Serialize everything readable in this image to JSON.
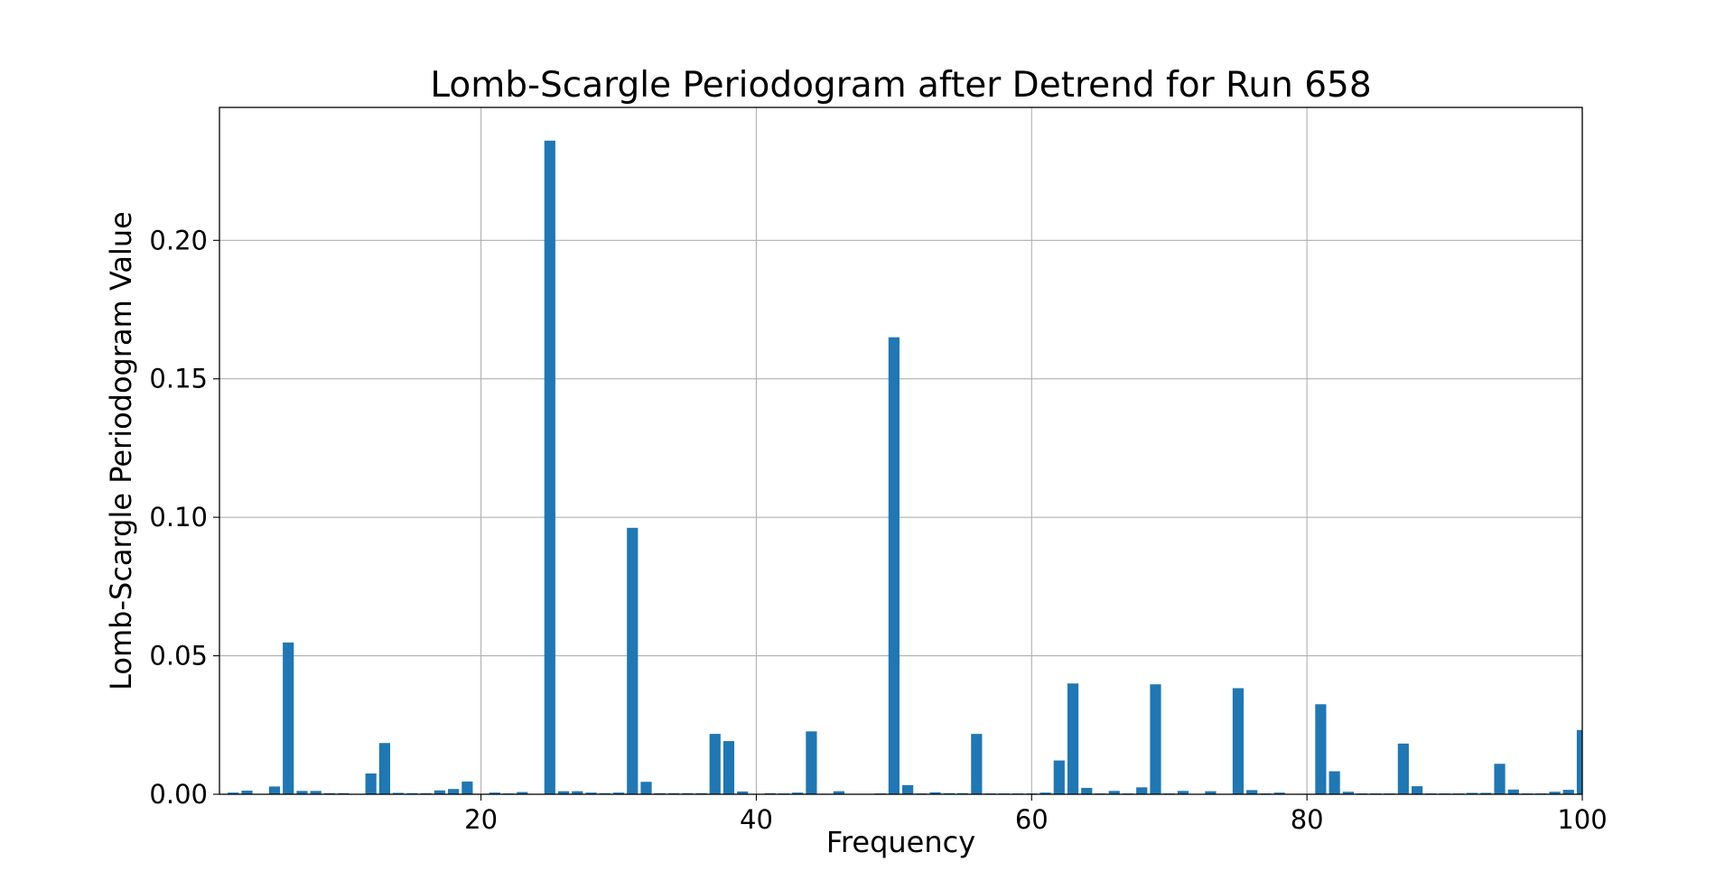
{
  "chart_data": {
    "type": "bar",
    "title": "Lomb-Scargle Periodogram after Detrend for Run 658",
    "xlabel": "Frequency",
    "ylabel": "Lomb-Scargle Periodogram Value",
    "xlim": [
      1,
      100
    ],
    "ylim": [
      0,
      0.248
    ],
    "xticks": [
      20,
      40,
      60,
      80,
      100
    ],
    "xtick_labels": [
      "20",
      "40",
      "60",
      "80",
      "100"
    ],
    "yticks": [
      0,
      0.05,
      0.1,
      0.15,
      0.2
    ],
    "ytick_labels": [
      "0.00",
      "0.05",
      "0.10",
      "0.15",
      "0.20"
    ],
    "grid": true,
    "bar_color": "#1f77b4",
    "x": [
      2,
      3,
      4,
      5,
      6,
      7,
      8,
      9,
      10,
      11,
      12,
      13,
      14,
      15,
      16,
      17,
      18,
      19,
      20,
      21,
      22,
      23,
      24,
      25,
      26,
      27,
      28,
      29,
      30,
      31,
      32,
      33,
      34,
      35,
      36,
      37,
      38,
      39,
      40,
      41,
      42,
      43,
      44,
      45,
      46,
      47,
      48,
      49,
      50,
      51,
      52,
      53,
      54,
      55,
      56,
      57,
      58,
      59,
      60,
      61,
      62,
      63,
      64,
      65,
      66,
      67,
      68,
      69,
      70,
      71,
      72,
      73,
      74,
      75,
      76,
      77,
      78,
      79,
      80,
      81,
      82,
      83,
      84,
      85,
      86,
      87,
      88,
      89,
      90,
      91,
      92,
      93,
      94,
      95,
      96,
      97,
      98,
      99,
      100
    ],
    "values": [
      0.0006,
      0.0013,
      0.0001,
      0.0028,
      0.0548,
      0.0012,
      0.0012,
      0.0004,
      0.0004,
      0.0001,
      0.0075,
      0.0185,
      0.0005,
      0.0004,
      0.0004,
      0.0014,
      0.0019,
      0.0046,
      0.0001,
      0.0006,
      0.0003,
      0.0008,
      0.0001,
      0.236,
      0.0011,
      0.0011,
      0.0006,
      0.0004,
      0.0006,
      0.0962,
      0.0045,
      0.0004,
      0.0004,
      0.0004,
      0.0004,
      0.0218,
      0.0192,
      0.001,
      0.0001,
      0.0004,
      0.0003,
      0.0006,
      0.0227,
      0.0002,
      0.0011,
      0.0001,
      0.0001,
      0.0003,
      0.165,
      0.0033,
      0.0003,
      0.0007,
      0.0004,
      0.0004,
      0.0218,
      0.0003,
      0.0003,
      0.0003,
      0.0003,
      0.0006,
      0.0122,
      0.04,
      0.0023,
      0.0003,
      0.0012,
      0.0003,
      0.0025,
      0.0397,
      0.0003,
      0.0012,
      0.0001,
      0.0011,
      0.0001,
      0.0383,
      0.0015,
      0.0003,
      0.0006,
      0.0001,
      0.0001,
      0.0325,
      0.0083,
      0.0009,
      0.0003,
      0.0003,
      0.0003,
      0.0183,
      0.0029,
      0.0003,
      0.0003,
      0.0003,
      0.0005,
      0.0005,
      0.011,
      0.0017,
      0.0003,
      0.0003,
      0.0009,
      0.0016,
      0.0232
    ]
  }
}
